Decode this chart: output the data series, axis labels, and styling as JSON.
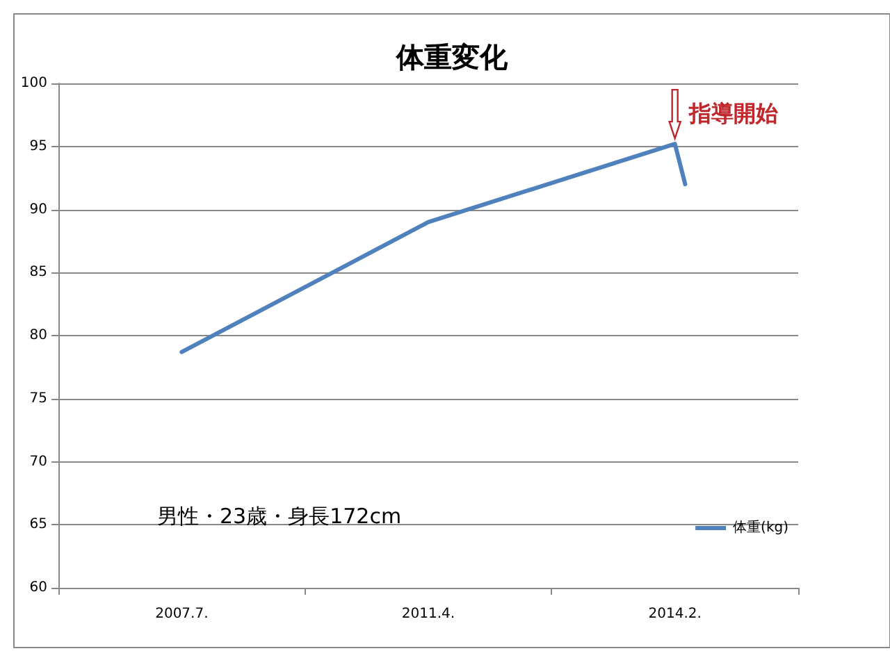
{
  "chart_data": {
    "type": "line",
    "title": "体重変化",
    "categories": [
      null,
      null,
      null,
      null,
      null,
      null,
      null,
      null,
      null,
      null,
      null,
      null,
      "2007.7.",
      null,
      null,
      null,
      null,
      null,
      null,
      null,
      null,
      null,
      null,
      null,
      null,
      null,
      null,
      null,
      null,
      null,
      null,
      null,
      null,
      null,
      null,
      null,
      "2011.4.",
      null,
      null,
      null,
      null,
      null,
      null,
      null,
      null,
      null,
      null,
      null,
      null,
      null,
      null,
      null,
      null,
      null,
      null,
      null,
      null,
      null,
      null,
      null,
      "2014.2.",
      null,
      null,
      null,
      null,
      null,
      null,
      null,
      null,
      null,
      null,
      null,
      null
    ],
    "series": [
      {
        "name": "体重(kg)",
        "color": "#4f81bd",
        "values": [
          null,
          null,
          null,
          null,
          null,
          null,
          null,
          null,
          null,
          null,
          null,
          null,
          78.7,
          null,
          null,
          null,
          null,
          null,
          null,
          null,
          null,
          null,
          null,
          null,
          null,
          null,
          null,
          null,
          null,
          null,
          null,
          null,
          null,
          null,
          null,
          null,
          89,
          null,
          null,
          null,
          null,
          null,
          null,
          null,
          null,
          null,
          null,
          null,
          null,
          null,
          null,
          null,
          null,
          null,
          null,
          null,
          null,
          null,
          null,
          null,
          95.2,
          92,
          null,
          null,
          null,
          null,
          null,
          null,
          null,
          null,
          null,
          null,
          null
        ]
      }
    ],
    "ylim": [
      60,
      100
    ],
    "yticks": [
      60,
      65,
      70,
      75,
      80,
      85,
      90,
      95,
      100
    ],
    "grid": "y",
    "legend": "right",
    "marker": "none",
    "line_style": "solid",
    "annotations": [
      {
        "text": "指導開始",
        "x": "2014.2.",
        "y": 95.2
      },
      "男性・23歳・身長172cm"
    ]
  }
}
